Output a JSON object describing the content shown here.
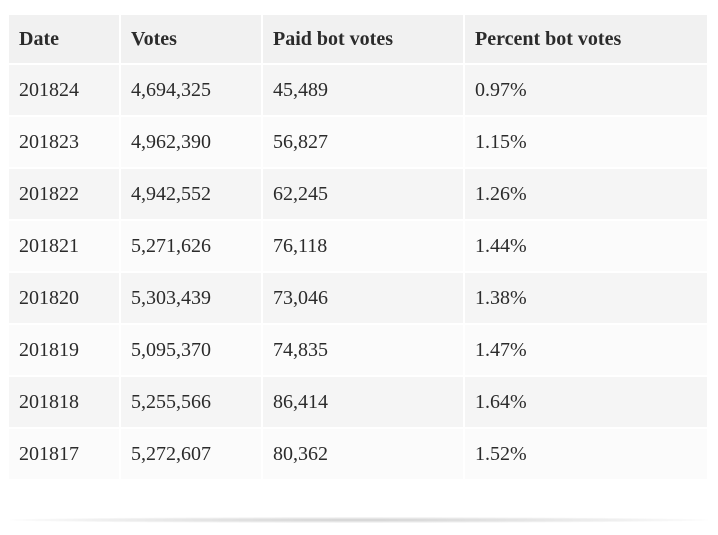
{
  "table": {
    "headers": [
      "Date",
      "Votes",
      "Paid bot votes",
      "Percent bot votes"
    ],
    "rows": [
      [
        "201824",
        "4,694,325",
        "45,489",
        "0.97%"
      ],
      [
        "201823",
        "4,962,390",
        "56,827",
        "1.15%"
      ],
      [
        "201822",
        "4,942,552",
        "62,245",
        "1.26%"
      ],
      [
        "201821",
        "5,271,626",
        "76,118",
        "1.44%"
      ],
      [
        "201820",
        "5,303,439",
        "73,046",
        "1.38%"
      ],
      [
        "201819",
        "5,095,370",
        "74,835",
        "1.47%"
      ],
      [
        "201818",
        "5,255,566",
        "86,414",
        "1.64%"
      ],
      [
        "201817",
        "5,272,607",
        "80,362",
        "1.52%"
      ]
    ]
  }
}
